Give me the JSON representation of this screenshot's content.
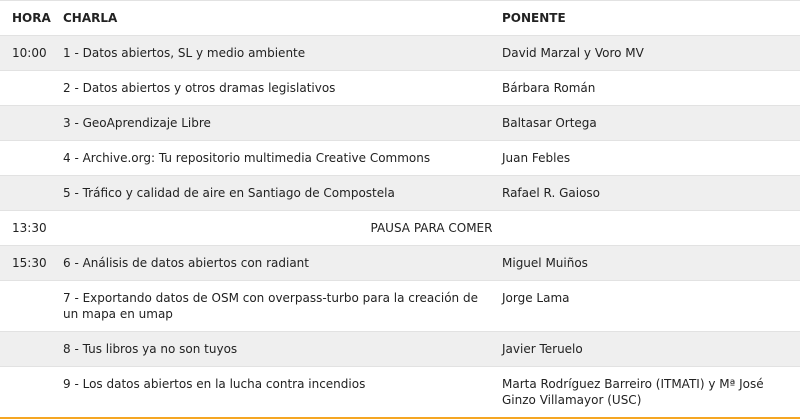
{
  "headers": {
    "hora": "HORA",
    "charla": "CHARLA",
    "ponente": "PONENTE"
  },
  "rows": [
    {
      "hora": "10:00",
      "charla": "1 - Datos abiertos, SL y medio ambiente",
      "ponente": "David Marzal y Voro MV"
    },
    {
      "hora": "",
      "charla": "2 - Datos abiertos y otros dramas legislativos",
      "ponente": "Bárbara Román"
    },
    {
      "hora": "",
      "charla": "3 - GeoAprendizaje Libre",
      "ponente": "Baltasar Ortega"
    },
    {
      "hora": "",
      "charla": "4 - Archive.org: Tu repositorio multimedia Creative Commons",
      "ponente": "Juan Febles"
    },
    {
      "hora": "",
      "charla": "5 - Tráfico y calidad de aire en Santiago de Compostela",
      "ponente": "Rafael R. Gaioso"
    }
  ],
  "pause": {
    "hora": "13:30",
    "label": "PAUSA PARA COMER"
  },
  "rows2": [
    {
      "hora": "15:30",
      "charla": "6 - Análisis de datos abiertos con radiant",
      "ponente": "Miguel Muiños"
    },
    {
      "hora": "",
      "charla": "7 - Exportando datos de OSM con overpass-turbo para la creación de un mapa en umap",
      "ponente": "Jorge Lama"
    },
    {
      "hora": "",
      "charla": "8 - Tus libros ya no son tuyos",
      "ponente": "Javier Teruelo"
    },
    {
      "hora": "",
      "charla": "9 - Los datos abiertos en la lucha contra incendios",
      "ponente": "Marta Rodríguez Barreiro (ITMATI) y Mª José Ginzo Villamayor (USC)"
    }
  ],
  "colors": {
    "stripe": "#efefef",
    "accent": "#f5a623"
  }
}
